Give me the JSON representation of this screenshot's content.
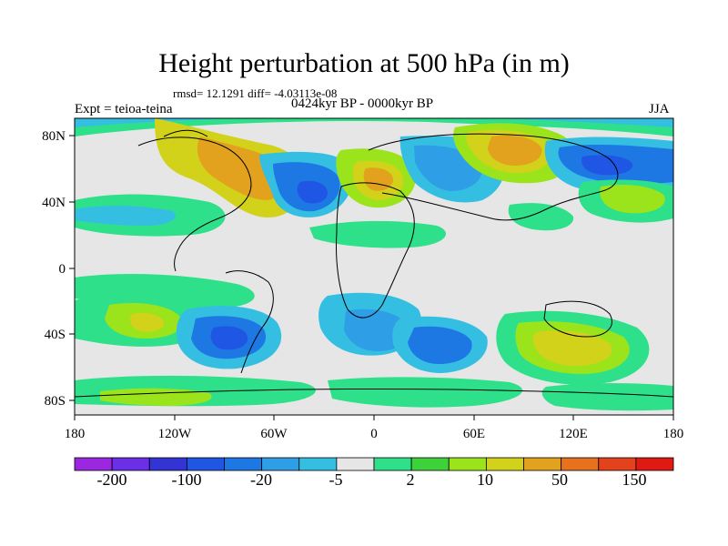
{
  "title": "Height perturbation at 500 hPa (in m)",
  "stats": "rmsd= 12.1291 diff= -4.03113e-08",
  "experiment": "Expt = teioa-teina",
  "period": "0424kyr BP - 0000kyr BP",
  "season": "JJA",
  "axes": {
    "lon_ticks": [
      "180",
      "120W",
      "60W",
      "0",
      "60E",
      "120E",
      "180"
    ],
    "lat_ticks": [
      "80N",
      "40N",
      "0",
      "40S",
      "80S"
    ]
  },
  "colorbar": {
    "colors": [
      "#9c27e0",
      "#6a2fe6",
      "#3434d4",
      "#1f57e4",
      "#1e78e4",
      "#2e9ee6",
      "#34bfe2",
      "#e6e6e6",
      "#2ee08a",
      "#3ed23a",
      "#9be41c",
      "#d2d21a",
      "#e2a21e",
      "#e6721e",
      "#e4421c",
      "#e01a12"
    ],
    "labels": [
      "-200",
      "-100",
      "-20",
      "-5",
      "2",
      "10",
      "50",
      "150"
    ]
  },
  "colors": {
    "land_outline": "#000000",
    "neutral": "#e6e6e6"
  }
}
